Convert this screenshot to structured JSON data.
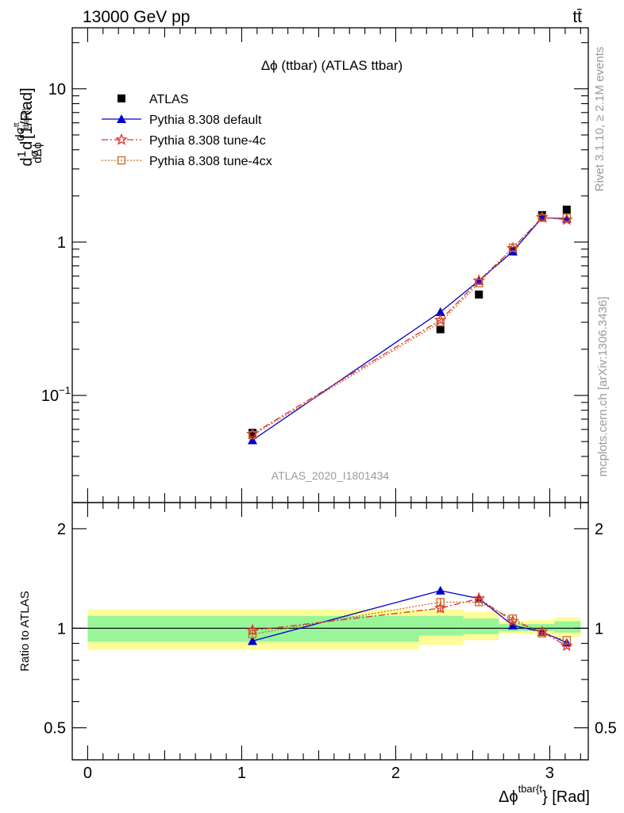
{
  "header": {
    "energy_label": "13000 GeV pp",
    "process_label": "tt̄"
  },
  "side": {
    "rivet_label": "Rivet 3.1.10, ≥ 2.1M events",
    "mcplots_label": "mcplots.cern.ch [arXiv:1306.3436]"
  },
  "chart_data": {
    "type": "line",
    "title": "Δϕ (ttbar) (ATLAS ttbar)",
    "watermark": "ATLAS_2020_I1801434",
    "xlabel": "Δϕtbar{t}} [Rad]",
    "xlabel_main": "Δϕ",
    "xlabel_sup": "tbar{t",
    "xlabel_tail": "} [Rad]",
    "ylabel": "d(1/σ)dσttbar{t}/dΔϕ [1/Rad]",
    "ylabel_parts": {
      "d1": "d",
      "frac1_num": "1",
      "frac1_den": "σ",
      "d2": "d",
      "frac2_num": "dσ",
      "frac2_num_sup": "tt",
      "frac2_num_sub": "tbar{t}",
      "frac2_den": "dΔϕ",
      "unit": "[1/Rad]"
    },
    "ratio_ylabel": "Ratio to ATLAS",
    "xlim": [
      -0.1,
      3.25
    ],
    "ylim_main": [
      0.02,
      25
    ],
    "ylim_ratio": [
      0.4,
      2.4
    ],
    "log_y_main": true,
    "log_y_ratio": true,
    "x_ticks": [
      {
        "value": 0,
        "label": "0"
      },
      {
        "value": 1,
        "label": "1"
      },
      {
        "value": 2,
        "label": "2"
      },
      {
        "value": 3,
        "label": "3"
      }
    ],
    "y_ticks_main": [
      {
        "value": 0.1,
        "label": "10",
        "sup": "−1"
      },
      {
        "value": 1,
        "label": "1",
        "sup": ""
      },
      {
        "value": 10,
        "label": "10",
        "sup": ""
      }
    ],
    "y_ticks_ratio": [
      {
        "value": 0.5,
        "label": "0.5"
      },
      {
        "value": 1,
        "label": "1"
      },
      {
        "value": 2,
        "label": "2"
      }
    ],
    "legend_position": "top-left",
    "data": {
      "name": "ATLAS",
      "x": [
        1.07,
        2.29,
        2.54,
        2.76,
        2.95,
        3.11
      ],
      "y": [
        0.057,
        0.27,
        0.455,
        0.87,
        1.5,
        1.63
      ]
    },
    "bins": [
      {
        "lo": 0.0,
        "hi": 2.15,
        "band_green": [
          0.91,
          1.09
        ],
        "band_yellow": [
          0.86,
          1.14
        ]
      },
      {
        "lo": 2.15,
        "hi": 2.44,
        "band_green": [
          0.95,
          1.09
        ],
        "band_yellow": [
          0.89,
          1.14
        ]
      },
      {
        "lo": 2.44,
        "hi": 2.67,
        "band_green": [
          0.96,
          1.07
        ],
        "band_yellow": [
          0.92,
          1.12
        ]
      },
      {
        "lo": 2.67,
        "hi": 2.85,
        "band_green": [
          0.98,
          1.03
        ],
        "band_yellow": [
          0.96,
          1.05
        ]
      },
      {
        "lo": 2.85,
        "hi": 3.03,
        "band_green": [
          0.98,
          1.03
        ],
        "band_yellow": [
          0.96,
          1.06
        ]
      },
      {
        "lo": 3.03,
        "hi": 3.2,
        "band_green": [
          0.97,
          1.05
        ],
        "band_yellow": [
          0.94,
          1.08
        ]
      }
    ],
    "series": [
      {
        "name": "Pythia 8.308 default",
        "color": "#0000cc",
        "line": "solid",
        "marker": "triangle",
        "x": [
          1.07,
          2.29,
          2.54,
          2.76,
          2.95,
          3.11
        ],
        "y": [
          0.051,
          0.35,
          0.56,
          0.87,
          1.44,
          1.42
        ],
        "ratio": [
          0.915,
          1.3,
          1.23,
          1.02,
          0.975,
          0.905
        ],
        "ratio_err": [
          0.02,
          0.035,
          0.03,
          0.015,
          0.012,
          0.012
        ]
      },
      {
        "name": "Pythia 8.308 tune-4c",
        "color": "#dd3333",
        "line": "dashdot",
        "marker": "star",
        "x": [
          1.07,
          2.29,
          2.54,
          2.76,
          2.95,
          3.11
        ],
        "y": [
          0.056,
          0.31,
          0.56,
          0.91,
          1.45,
          1.4
        ],
        "ratio": [
          0.985,
          1.15,
          1.23,
          1.05,
          0.975,
          0.885
        ],
        "ratio_err": [
          0.03,
          0.035,
          0.03,
          0.015,
          0.012,
          0.012
        ]
      },
      {
        "name": "Pythia 8.308 tune-4cx",
        "color": "#cc6622",
        "line": "dotted",
        "marker": "open-square",
        "x": [
          1.07,
          2.29,
          2.54,
          2.76,
          2.95,
          3.11
        ],
        "y": [
          0.055,
          0.3,
          0.54,
          0.92,
          1.44,
          1.44
        ],
        "ratio": [
          0.96,
          1.2,
          1.2,
          1.07,
          0.965,
          0.92
        ],
        "ratio_err": [
          0.03,
          0.035,
          0.03,
          0.015,
          0.012,
          0.012
        ]
      }
    ]
  }
}
